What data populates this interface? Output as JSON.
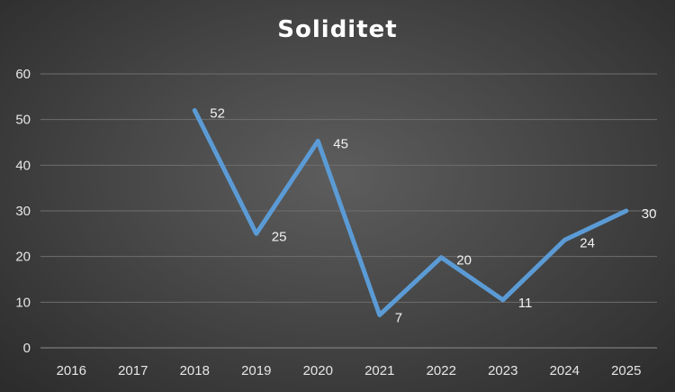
{
  "chart_data": {
    "type": "line",
    "title": "Soliditet",
    "xlabel": "",
    "ylabel": "",
    "categories": [
      "2016",
      "2017",
      "2018",
      "2019",
      "2020",
      "2021",
      "2022",
      "2023",
      "2024",
      "2025"
    ],
    "series": [
      {
        "values": [
          null,
          null,
          52,
          25,
          45,
          7,
          20,
          11,
          24,
          30
        ],
        "labels": [
          "",
          "",
          "52",
          "25",
          "45",
          "7",
          "20",
          "11",
          "24",
          "30"
        ]
      }
    ],
    "plotted_values": [
      null,
      null,
      52,
      25,
      45.3,
      7.2,
      19.8,
      10.5,
      23.6,
      30
    ],
    "ylim": [
      0,
      60
    ],
    "yticks": [
      "0",
      "10",
      "20",
      "30",
      "40",
      "50",
      "60"
    ],
    "grid": true,
    "legend": "none",
    "line_color": "#5b9bd5"
  }
}
